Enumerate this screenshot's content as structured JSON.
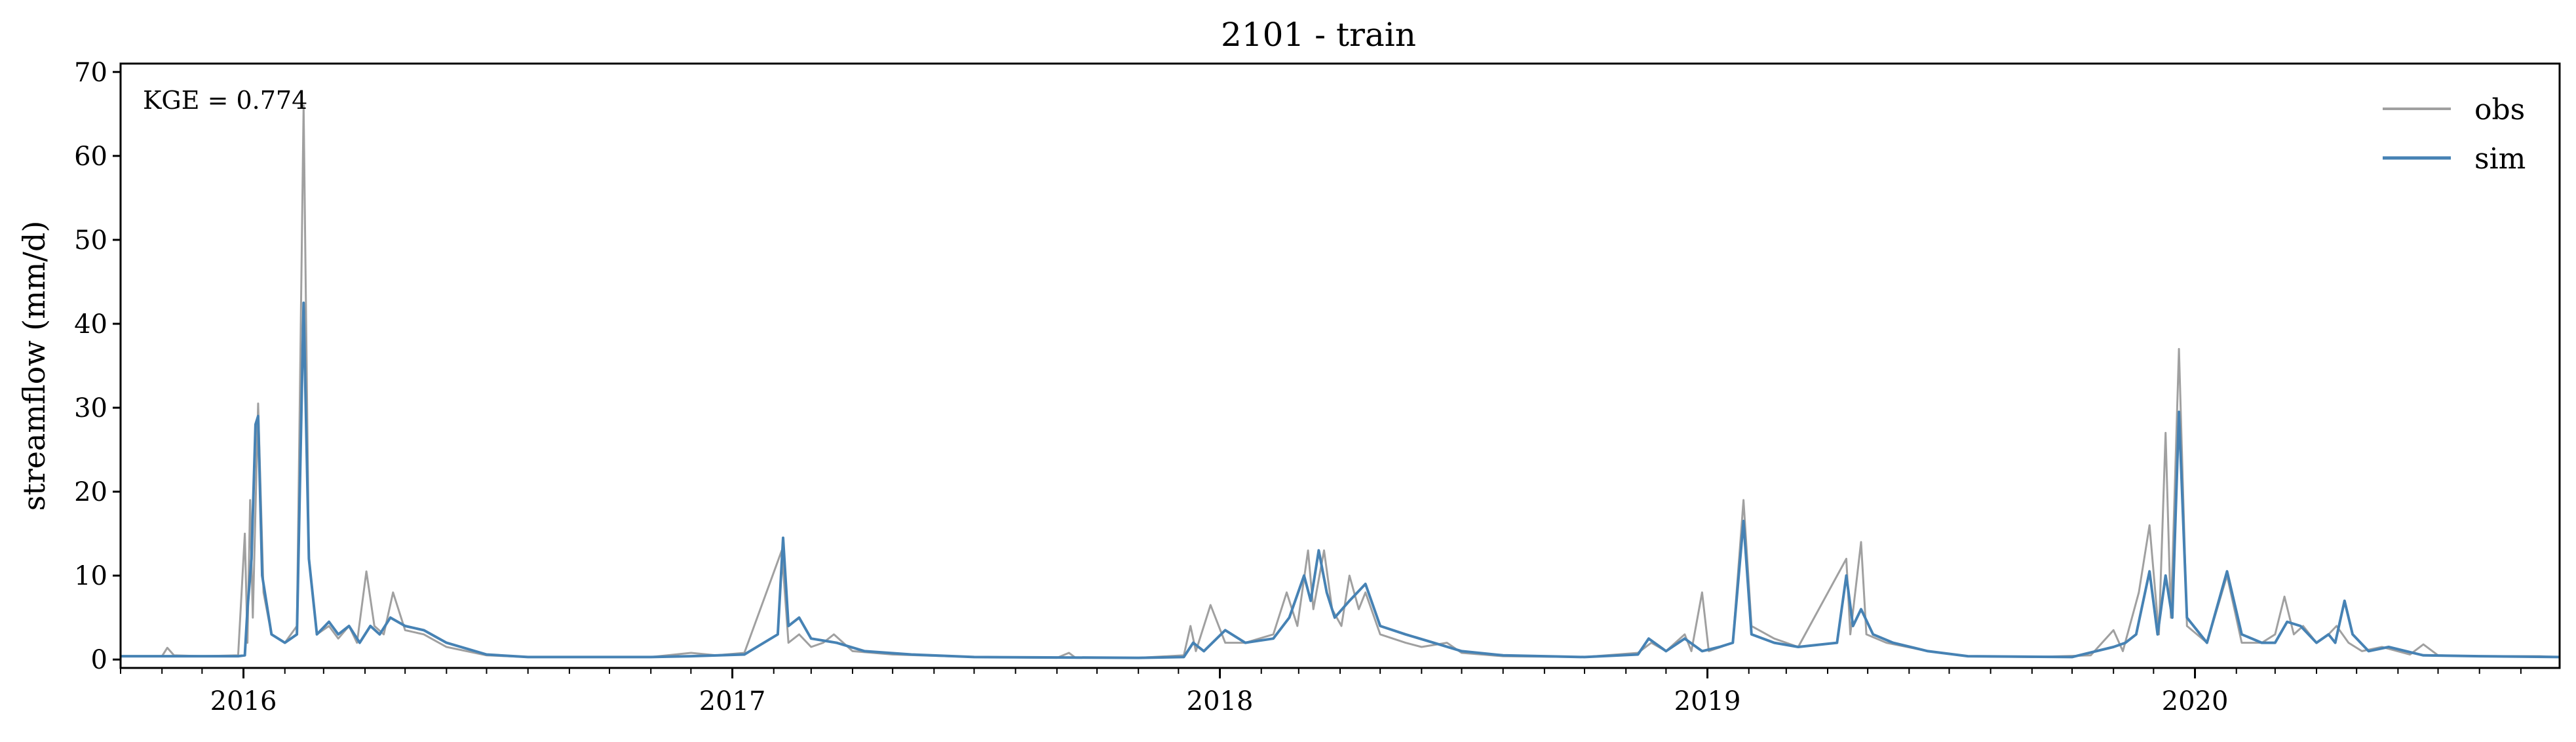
{
  "chart_data": {
    "type": "line",
    "title": "2101 - train",
    "ylabel": "streamflow (mm/d)",
    "xlabel": "",
    "xlim": [
      "2015-10-01",
      "2020-09-30"
    ],
    "ylim": [
      -1,
      71
    ],
    "yticks": [
      0,
      10,
      20,
      30,
      40,
      50,
      60,
      70
    ],
    "xticks": [
      "2016-01-01",
      "2017-01-01",
      "2018-01-01",
      "2019-01-01",
      "2020-01-01"
    ],
    "xtick_labels": [
      "2016",
      "2017",
      "2018",
      "2019",
      "2020"
    ],
    "legend_position": "top-right",
    "grid": false,
    "annotation": "KGE = 0.774",
    "series": [
      {
        "name": "obs",
        "color": "#a0a0a0",
        "points": [
          [
            "2015-10-01",
            0.4
          ],
          [
            "2015-11-01",
            0.4
          ],
          [
            "2015-11-05",
            1.4
          ],
          [
            "2015-11-10",
            0.5
          ],
          [
            "2015-12-01",
            0.4
          ],
          [
            "2015-12-28",
            0.5
          ],
          [
            "2016-01-02",
            15
          ],
          [
            "2016-01-04",
            2
          ],
          [
            "2016-01-06",
            19
          ],
          [
            "2016-01-08",
            5
          ],
          [
            "2016-01-12",
            30.5
          ],
          [
            "2016-01-16",
            8
          ],
          [
            "2016-01-22",
            3
          ],
          [
            "2016-02-01",
            2
          ],
          [
            "2016-02-10",
            4
          ],
          [
            "2016-02-15",
            66
          ],
          [
            "2016-02-19",
            12
          ],
          [
            "2016-02-25",
            3
          ],
          [
            "2016-03-05",
            4
          ],
          [
            "2016-03-12",
            2.5
          ],
          [
            "2016-03-20",
            4
          ],
          [
            "2016-03-26",
            2
          ],
          [
            "2016-04-02",
            10.5
          ],
          [
            "2016-04-08",
            4
          ],
          [
            "2016-04-15",
            3
          ],
          [
            "2016-04-22",
            8
          ],
          [
            "2016-05-01",
            3.5
          ],
          [
            "2016-05-15",
            3
          ],
          [
            "2016-06-01",
            1.5
          ],
          [
            "2016-07-01",
            0.5
          ],
          [
            "2016-08-01",
            0.3
          ],
          [
            "2016-10-01",
            0.3
          ],
          [
            "2016-11-01",
            0.3
          ],
          [
            "2016-12-01",
            0.8
          ],
          [
            "2016-12-20",
            0.5
          ],
          [
            "2017-01-10",
            0.8
          ],
          [
            "2017-02-07",
            13
          ],
          [
            "2017-02-12",
            2
          ],
          [
            "2017-02-20",
            3
          ],
          [
            "2017-03-01",
            1.5
          ],
          [
            "2017-03-10",
            2
          ],
          [
            "2017-03-18",
            3
          ],
          [
            "2017-04-01",
            1
          ],
          [
            "2017-05-01",
            0.6
          ],
          [
            "2017-07-01",
            0.3
          ],
          [
            "2017-09-01",
            0.2
          ],
          [
            "2017-09-10",
            0.8
          ],
          [
            "2017-09-15",
            0.2
          ],
          [
            "2017-11-01",
            0.2
          ],
          [
            "2017-12-05",
            0.5
          ],
          [
            "2017-12-10",
            4
          ],
          [
            "2017-12-14",
            1
          ],
          [
            "2017-12-25",
            6.5
          ],
          [
            "2018-01-05",
            2
          ],
          [
            "2018-01-20",
            2
          ],
          [
            "2018-02-10",
            3
          ],
          [
            "2018-02-20",
            8
          ],
          [
            "2018-02-28",
            4
          ],
          [
            "2018-03-08",
            13
          ],
          [
            "2018-03-12",
            6
          ],
          [
            "2018-03-20",
            13
          ],
          [
            "2018-03-26",
            6
          ],
          [
            "2018-04-02",
            4
          ],
          [
            "2018-04-08",
            10
          ],
          [
            "2018-04-15",
            6
          ],
          [
            "2018-04-20",
            8
          ],
          [
            "2018-05-01",
            3
          ],
          [
            "2018-05-20",
            2
          ],
          [
            "2018-06-01",
            1.5
          ],
          [
            "2018-06-20",
            2
          ],
          [
            "2018-07-01",
            0.8
          ],
          [
            "2018-08-01",
            0.4
          ],
          [
            "2018-10-01",
            0.3
          ],
          [
            "2018-11-10",
            0.8
          ],
          [
            "2018-11-20",
            2
          ],
          [
            "2018-12-01",
            1
          ],
          [
            "2018-12-15",
            3
          ],
          [
            "2018-12-20",
            1
          ],
          [
            "2018-12-28",
            8
          ],
          [
            "2019-01-02",
            1
          ],
          [
            "2019-01-20",
            2
          ],
          [
            "2019-01-28",
            19
          ],
          [
            "2019-02-03",
            4
          ],
          [
            "2019-02-20",
            2.5
          ],
          [
            "2019-03-10",
            1.5
          ],
          [
            "2019-04-15",
            12
          ],
          [
            "2019-04-18",
            3
          ],
          [
            "2019-04-26",
            14
          ],
          [
            "2019-04-30",
            3
          ],
          [
            "2019-05-15",
            2
          ],
          [
            "2019-06-15",
            1
          ],
          [
            "2019-07-15",
            0.4
          ],
          [
            "2019-09-01",
            0.3
          ],
          [
            "2019-10-15",
            0.5
          ],
          [
            "2019-11-01",
            3.5
          ],
          [
            "2019-11-08",
            1
          ],
          [
            "2019-11-20",
            8
          ],
          [
            "2019-11-28",
            16
          ],
          [
            "2019-12-05",
            3
          ],
          [
            "2019-12-10",
            27
          ],
          [
            "2019-12-14",
            5
          ],
          [
            "2019-12-20",
            37
          ],
          [
            "2019-12-26",
            4
          ],
          [
            "2020-01-10",
            2
          ],
          [
            "2020-01-25",
            10
          ],
          [
            "2020-02-05",
            2
          ],
          [
            "2020-02-20",
            2
          ],
          [
            "2020-03-01",
            3
          ],
          [
            "2020-03-08",
            7.5
          ],
          [
            "2020-03-15",
            3
          ],
          [
            "2020-03-22",
            4
          ],
          [
            "2020-04-01",
            2
          ],
          [
            "2020-04-10",
            3
          ],
          [
            "2020-04-16",
            4
          ],
          [
            "2020-04-25",
            2
          ],
          [
            "2020-05-05",
            1
          ],
          [
            "2020-05-20",
            1.5
          ],
          [
            "2020-06-10",
            0.6
          ],
          [
            "2020-06-20",
            1.8
          ],
          [
            "2020-07-01",
            0.5
          ],
          [
            "2020-08-01",
            0.4
          ],
          [
            "2020-09-15",
            0.4
          ],
          [
            "2020-09-30",
            0.3
          ]
        ]
      },
      {
        "name": "sim",
        "color": "#4682b4",
        "points": [
          [
            "2015-10-01",
            0.4
          ],
          [
            "2015-12-28",
            0.4
          ],
          [
            "2016-01-02",
            0.5
          ],
          [
            "2016-01-04",
            6
          ],
          [
            "2016-01-07",
            12
          ],
          [
            "2016-01-10",
            28
          ],
          [
            "2016-01-12",
            29
          ],
          [
            "2016-01-15",
            10
          ],
          [
            "2016-01-22",
            3
          ],
          [
            "2016-02-01",
            2
          ],
          [
            "2016-02-10",
            3
          ],
          [
            "2016-02-15",
            42.5
          ],
          [
            "2016-02-19",
            12
          ],
          [
            "2016-02-25",
            3
          ],
          [
            "2016-03-05",
            4.5
          ],
          [
            "2016-03-12",
            3
          ],
          [
            "2016-03-20",
            4
          ],
          [
            "2016-03-28",
            2
          ],
          [
            "2016-04-05",
            4
          ],
          [
            "2016-04-12",
            3
          ],
          [
            "2016-04-20",
            5
          ],
          [
            "2016-05-01",
            4
          ],
          [
            "2016-05-15",
            3.5
          ],
          [
            "2016-06-01",
            2
          ],
          [
            "2016-07-01",
            0.6
          ],
          [
            "2016-08-01",
            0.3
          ],
          [
            "2016-11-01",
            0.3
          ],
          [
            "2016-12-01",
            0.4
          ],
          [
            "2017-01-10",
            0.6
          ],
          [
            "2017-02-04",
            3
          ],
          [
            "2017-02-08",
            14.5
          ],
          [
            "2017-02-12",
            4
          ],
          [
            "2017-02-20",
            5
          ],
          [
            "2017-03-01",
            2.5
          ],
          [
            "2017-03-20",
            2
          ],
          [
            "2017-04-10",
            1
          ],
          [
            "2017-05-15",
            0.6
          ],
          [
            "2017-07-01",
            0.3
          ],
          [
            "2017-11-01",
            0.2
          ],
          [
            "2017-12-05",
            0.3
          ],
          [
            "2017-12-12",
            2
          ],
          [
            "2017-12-20",
            1
          ],
          [
            "2018-01-05",
            3.5
          ],
          [
            "2018-01-20",
            2
          ],
          [
            "2018-02-10",
            2.5
          ],
          [
            "2018-02-22",
            5
          ],
          [
            "2018-03-05",
            10
          ],
          [
            "2018-03-10",
            7
          ],
          [
            "2018-03-16",
            13
          ],
          [
            "2018-03-22",
            8
          ],
          [
            "2018-03-28",
            5
          ],
          [
            "2018-04-08",
            7
          ],
          [
            "2018-04-14",
            8
          ],
          [
            "2018-04-20",
            9
          ],
          [
            "2018-05-01",
            4
          ],
          [
            "2018-05-20",
            3
          ],
          [
            "2018-06-10",
            2
          ],
          [
            "2018-07-01",
            1
          ],
          [
            "2018-08-01",
            0.5
          ],
          [
            "2018-10-01",
            0.3
          ],
          [
            "2018-11-10",
            0.6
          ],
          [
            "2018-11-18",
            2.5
          ],
          [
            "2018-12-01",
            1
          ],
          [
            "2018-12-15",
            2.5
          ],
          [
            "2018-12-28",
            1
          ],
          [
            "2019-01-10",
            1.5
          ],
          [
            "2019-01-20",
            2
          ],
          [
            "2019-01-28",
            16.5
          ],
          [
            "2019-02-03",
            3
          ],
          [
            "2019-02-20",
            2
          ],
          [
            "2019-03-10",
            1.5
          ],
          [
            "2019-04-08",
            2
          ],
          [
            "2019-04-15",
            10
          ],
          [
            "2019-04-20",
            4
          ],
          [
            "2019-04-26",
            6
          ],
          [
            "2019-05-05",
            3
          ],
          [
            "2019-05-20",
            2
          ],
          [
            "2019-06-15",
            1
          ],
          [
            "2019-07-15",
            0.4
          ],
          [
            "2019-10-01",
            0.3
          ],
          [
            "2019-11-01",
            1.5
          ],
          [
            "2019-11-10",
            2
          ],
          [
            "2019-11-18",
            3
          ],
          [
            "2019-11-28",
            10.5
          ],
          [
            "2019-12-04",
            3
          ],
          [
            "2019-12-10",
            10
          ],
          [
            "2019-12-15",
            5
          ],
          [
            "2019-12-20",
            29.5
          ],
          [
            "2019-12-26",
            5
          ],
          [
            "2020-01-10",
            2
          ],
          [
            "2020-01-25",
            10.5
          ],
          [
            "2020-02-05",
            3
          ],
          [
            "2020-02-20",
            2
          ],
          [
            "2020-03-01",
            2
          ],
          [
            "2020-03-10",
            4.5
          ],
          [
            "2020-03-20",
            4
          ],
          [
            "2020-04-01",
            2
          ],
          [
            "2020-04-10",
            3
          ],
          [
            "2020-04-15",
            2
          ],
          [
            "2020-04-22",
            7
          ],
          [
            "2020-04-28",
            3
          ],
          [
            "2020-05-10",
            1
          ],
          [
            "2020-05-25",
            1.5
          ],
          [
            "2020-06-20",
            0.5
          ],
          [
            "2020-08-01",
            0.4
          ],
          [
            "2020-09-30",
            0.3
          ]
        ]
      }
    ]
  }
}
